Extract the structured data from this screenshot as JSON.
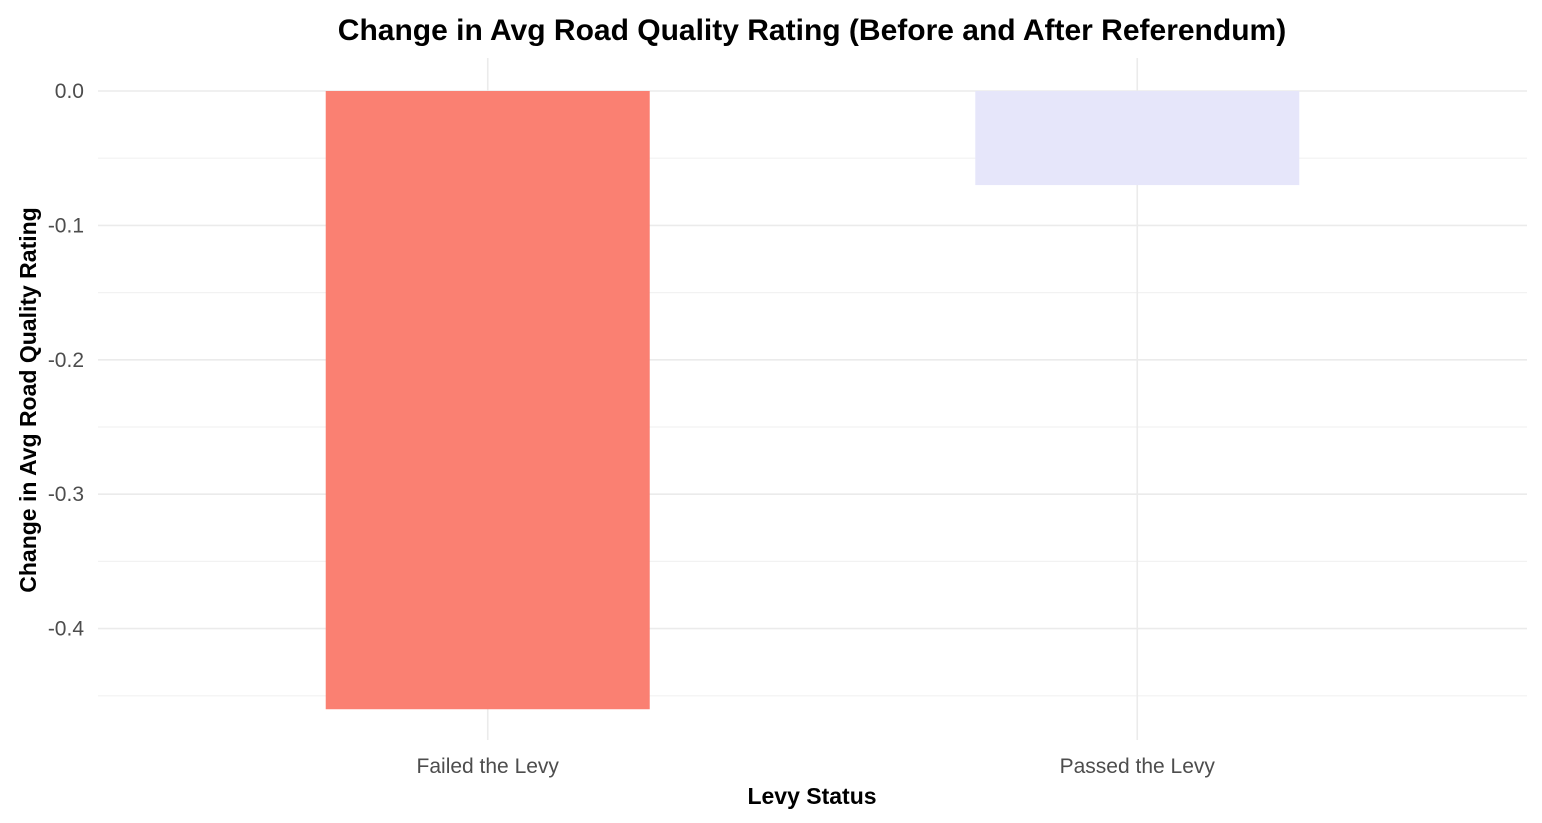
{
  "chart_data": {
    "type": "bar",
    "title": "Change in Avg Road Quality Rating (Before and After Referendum)",
    "xlabel": "Levy Status",
    "ylabel": "Change in Avg Road Quality Rating",
    "categories": [
      "Failed the Levy",
      "Passed the Levy"
    ],
    "values": [
      -0.46,
      -0.07
    ],
    "colors": [
      "#FA8072",
      "#E6E6FA"
    ],
    "ylim": [
      -0.475,
      0.025
    ],
    "yticks": [
      0.0,
      -0.1,
      -0.2,
      -0.3,
      -0.4
    ],
    "ytick_labels": [
      "0.0",
      "-0.1",
      "-0.2",
      "-0.3",
      "-0.4"
    ],
    "grid": true,
    "legend": "none"
  }
}
